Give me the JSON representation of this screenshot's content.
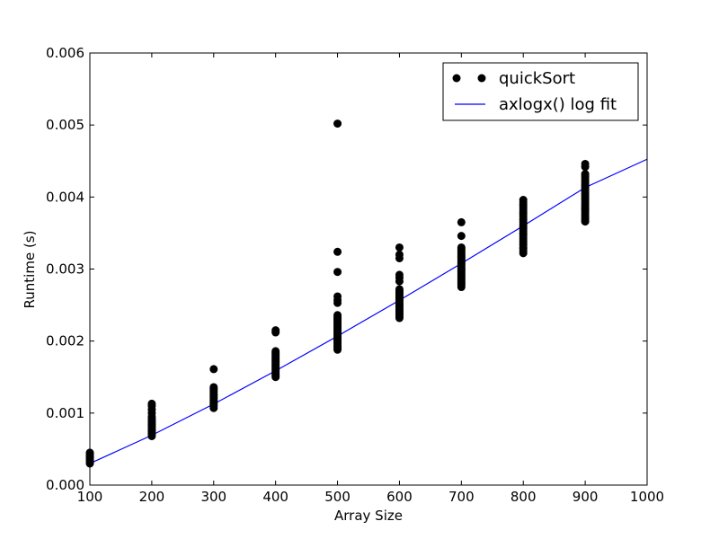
{
  "chart_data": {
    "type": "scatter",
    "xlabel": "Array Size",
    "ylabel": "Runtime (s)",
    "xlim": [
      100,
      1000
    ],
    "ylim": [
      0.0,
      0.006
    ],
    "x_ticks": [
      "100",
      "200",
      "300",
      "400",
      "500",
      "600",
      "700",
      "800",
      "900",
      "1000"
    ],
    "y_ticks": [
      "0.000",
      "0.001",
      "0.002",
      "0.003",
      "0.004",
      "0.005",
      "0.006"
    ],
    "grid": false,
    "legend_position": "top-right",
    "series": [
      {
        "name": "quickSort",
        "type": "scatter",
        "color": "#000000",
        "points": [
          [
            100,
            0.0003
          ],
          [
            100,
            0.00032
          ],
          [
            100,
            0.00034
          ],
          [
            100,
            0.00036
          ],
          [
            100,
            0.00038
          ],
          [
            100,
            0.0004
          ],
          [
            100,
            0.00042
          ],
          [
            100,
            0.00044
          ],
          [
            100,
            0.00045
          ],
          [
            200,
            0.00068
          ],
          [
            200,
            0.0007
          ],
          [
            200,
            0.00072
          ],
          [
            200,
            0.00074
          ],
          [
            200,
            0.00076
          ],
          [
            200,
            0.00078
          ],
          [
            200,
            0.0008
          ],
          [
            200,
            0.00082
          ],
          [
            200,
            0.00084
          ],
          [
            200,
            0.00086
          ],
          [
            200,
            0.00088
          ],
          [
            200,
            0.0009
          ],
          [
            200,
            0.00092
          ],
          [
            200,
            0.00095
          ],
          [
            200,
            0.001
          ],
          [
            200,
            0.00105
          ],
          [
            200,
            0.0011
          ],
          [
            200,
            0.00113
          ],
          [
            300,
            0.00107
          ],
          [
            300,
            0.0011
          ],
          [
            300,
            0.00112
          ],
          [
            300,
            0.00114
          ],
          [
            300,
            0.00116
          ],
          [
            300,
            0.00118
          ],
          [
            300,
            0.0012
          ],
          [
            300,
            0.00122
          ],
          [
            300,
            0.00124
          ],
          [
            300,
            0.00126
          ],
          [
            300,
            0.00128
          ],
          [
            300,
            0.0013
          ],
          [
            300,
            0.00132
          ],
          [
            300,
            0.00134
          ],
          [
            300,
            0.00136
          ],
          [
            300,
            0.00161
          ],
          [
            400,
            0.0015
          ],
          [
            400,
            0.00152
          ],
          [
            400,
            0.00154
          ],
          [
            400,
            0.00156
          ],
          [
            400,
            0.00158
          ],
          [
            400,
            0.0016
          ],
          [
            400,
            0.00162
          ],
          [
            400,
            0.00164
          ],
          [
            400,
            0.00166
          ],
          [
            400,
            0.00168
          ],
          [
            400,
            0.0017
          ],
          [
            400,
            0.00172
          ],
          [
            400,
            0.00174
          ],
          [
            400,
            0.00176
          ],
          [
            400,
            0.00178
          ],
          [
            400,
            0.0018
          ],
          [
            400,
            0.00182
          ],
          [
            400,
            0.00184
          ],
          [
            400,
            0.00186
          ],
          [
            400,
            0.00212
          ],
          [
            400,
            0.00215
          ],
          [
            500,
            0.00188
          ],
          [
            500,
            0.0019
          ],
          [
            500,
            0.00192
          ],
          [
            500,
            0.00194
          ],
          [
            500,
            0.00196
          ],
          [
            500,
            0.00198
          ],
          [
            500,
            0.002
          ],
          [
            500,
            0.00202
          ],
          [
            500,
            0.00204
          ],
          [
            500,
            0.00206
          ],
          [
            500,
            0.00208
          ],
          [
            500,
            0.0021
          ],
          [
            500,
            0.00212
          ],
          [
            500,
            0.00214
          ],
          [
            500,
            0.00216
          ],
          [
            500,
            0.00218
          ],
          [
            500,
            0.0022
          ],
          [
            500,
            0.00222
          ],
          [
            500,
            0.00224
          ],
          [
            500,
            0.00226
          ],
          [
            500,
            0.00228
          ],
          [
            500,
            0.0023
          ],
          [
            500,
            0.00232
          ],
          [
            500,
            0.00234
          ],
          [
            500,
            0.00236
          ],
          [
            500,
            0.00253
          ],
          [
            500,
            0.00257
          ],
          [
            500,
            0.00262
          ],
          [
            500,
            0.00296
          ],
          [
            500,
            0.00324
          ],
          [
            500,
            0.00502
          ],
          [
            600,
            0.00232
          ],
          [
            600,
            0.00234
          ],
          [
            600,
            0.00236
          ],
          [
            600,
            0.00238
          ],
          [
            600,
            0.0024
          ],
          [
            600,
            0.00242
          ],
          [
            600,
            0.00244
          ],
          [
            600,
            0.00246
          ],
          [
            600,
            0.00248
          ],
          [
            600,
            0.0025
          ],
          [
            600,
            0.00252
          ],
          [
            600,
            0.00254
          ],
          [
            600,
            0.00256
          ],
          [
            600,
            0.00258
          ],
          [
            600,
            0.0026
          ],
          [
            600,
            0.00262
          ],
          [
            600,
            0.00264
          ],
          [
            600,
            0.00266
          ],
          [
            600,
            0.00268
          ],
          [
            600,
            0.0027
          ],
          [
            600,
            0.00272
          ],
          [
            600,
            0.00283
          ],
          [
            600,
            0.00288
          ],
          [
            600,
            0.00292
          ],
          [
            600,
            0.00315
          ],
          [
            600,
            0.0032
          ],
          [
            600,
            0.0033
          ],
          [
            700,
            0.00275
          ],
          [
            700,
            0.00278
          ],
          [
            700,
            0.0028
          ],
          [
            700,
            0.00282
          ],
          [
            700,
            0.00284
          ],
          [
            700,
            0.00286
          ],
          [
            700,
            0.00288
          ],
          [
            700,
            0.0029
          ],
          [
            700,
            0.00292
          ],
          [
            700,
            0.00294
          ],
          [
            700,
            0.00296
          ],
          [
            700,
            0.00298
          ],
          [
            700,
            0.003
          ],
          [
            700,
            0.00302
          ],
          [
            700,
            0.00304
          ],
          [
            700,
            0.00306
          ],
          [
            700,
            0.00308
          ],
          [
            700,
            0.0031
          ],
          [
            700,
            0.00312
          ],
          [
            700,
            0.00314
          ],
          [
            700,
            0.00316
          ],
          [
            700,
            0.00318
          ],
          [
            700,
            0.0032
          ],
          [
            700,
            0.00322
          ],
          [
            700,
            0.00324
          ],
          [
            700,
            0.00326
          ],
          [
            700,
            0.00328
          ],
          [
            700,
            0.0033
          ],
          [
            700,
            0.00346
          ],
          [
            700,
            0.00365
          ],
          [
            800,
            0.00322
          ],
          [
            800,
            0.00325
          ],
          [
            800,
            0.00328
          ],
          [
            800,
            0.0033
          ],
          [
            800,
            0.00333
          ],
          [
            800,
            0.00336
          ],
          [
            800,
            0.00339
          ],
          [
            800,
            0.00342
          ],
          [
            800,
            0.00345
          ],
          [
            800,
            0.00348
          ],
          [
            800,
            0.0035
          ],
          [
            800,
            0.00353
          ],
          [
            800,
            0.00356
          ],
          [
            800,
            0.00359
          ],
          [
            800,
            0.00362
          ],
          [
            800,
            0.00365
          ],
          [
            800,
            0.00368
          ],
          [
            800,
            0.0037
          ],
          [
            800,
            0.00373
          ],
          [
            800,
            0.00376
          ],
          [
            800,
            0.00379
          ],
          [
            800,
            0.00382
          ],
          [
            800,
            0.00385
          ],
          [
            800,
            0.00388
          ],
          [
            800,
            0.0039
          ],
          [
            800,
            0.00393
          ],
          [
            800,
            0.00396
          ],
          [
            900,
            0.00366
          ],
          [
            900,
            0.00369
          ],
          [
            900,
            0.00372
          ],
          [
            900,
            0.00375
          ],
          [
            900,
            0.00378
          ],
          [
            900,
            0.00381
          ],
          [
            900,
            0.00384
          ],
          [
            900,
            0.00387
          ],
          [
            900,
            0.0039
          ],
          [
            900,
            0.00393
          ],
          [
            900,
            0.00396
          ],
          [
            900,
            0.00399
          ],
          [
            900,
            0.00402
          ],
          [
            900,
            0.00405
          ],
          [
            900,
            0.00408
          ],
          [
            900,
            0.00411
          ],
          [
            900,
            0.00414
          ],
          [
            900,
            0.00417
          ],
          [
            900,
            0.0042
          ],
          [
            900,
            0.00423
          ],
          [
            900,
            0.00426
          ],
          [
            900,
            0.00429
          ],
          [
            900,
            0.00432
          ],
          [
            900,
            0.00442
          ],
          [
            900,
            0.00446
          ]
        ]
      },
      {
        "name": "axlogx() log fit",
        "type": "line",
        "color": "#0000ff",
        "x": [
          100,
          200,
          300,
          400,
          500,
          600,
          700,
          800,
          900,
          1000
        ],
        "y": [
          0.0003,
          0.000692,
          0.001126,
          0.001587,
          0.002069,
          0.002567,
          0.003078,
          0.0036,
          0.004132,
          0.004525
        ]
      }
    ]
  }
}
